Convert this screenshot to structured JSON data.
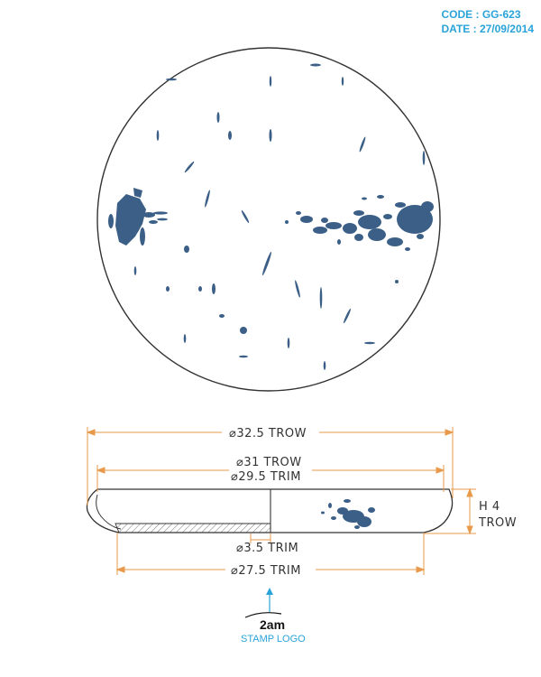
{
  "header": {
    "code": "CODE : GG-623",
    "date": "DATE : 27/09/2014"
  },
  "dimensions": {
    "outer_diameter": "32.5 TROW",
    "inner_diameter": "31 TROW",
    "trim_diameter": "29.5 TRIM",
    "base_offset": "3.5 TRIM",
    "base_diameter": "27.5 TRIM",
    "height_label": "H 4",
    "height_unit": "TROW",
    "diameter_symbol": "⌀"
  },
  "stamp": {
    "logo_text": "2am",
    "label": "STAMP LOGO"
  },
  "colors": {
    "pattern_blue": "#3b5f86",
    "dimension_orange": "#e89a4a",
    "accent_blue": "#2aa3d9",
    "outline": "#333333"
  }
}
